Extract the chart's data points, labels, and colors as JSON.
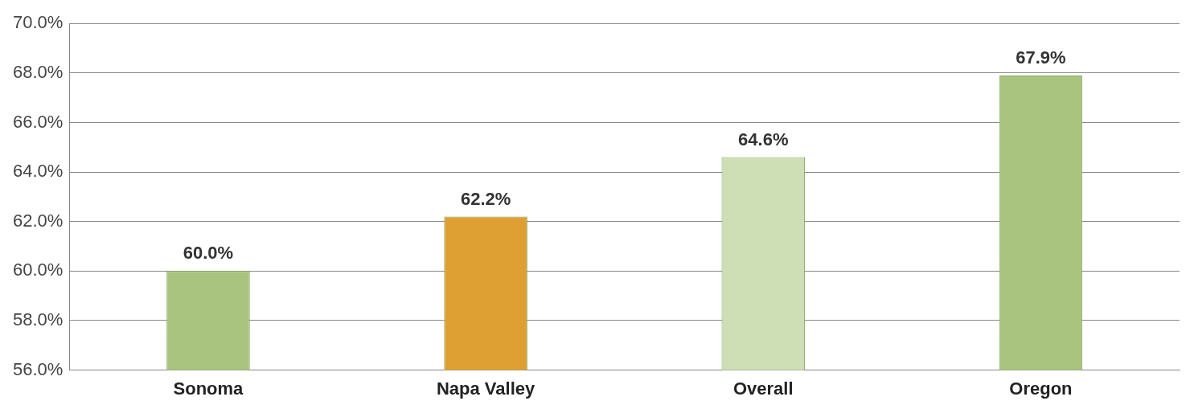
{
  "chart_data": {
    "type": "bar",
    "categories": [
      "Sonoma",
      "Napa Valley",
      "Overall",
      "Oregon"
    ],
    "values": [
      60.0,
      62.2,
      64.6,
      67.9
    ],
    "colors": [
      "#a9c47f",
      "#dfa033",
      "#cfdfb5",
      "#a9c47f"
    ],
    "value_labels": [
      "60.0%",
      "62.2%",
      "64.6%",
      "67.9%"
    ],
    "ylim": [
      56,
      70
    ],
    "yticks": [
      {
        "value": 56,
        "label": "56.0%"
      },
      {
        "value": 58,
        "label": "58.0%"
      },
      {
        "value": 60,
        "label": "60.0%"
      },
      {
        "value": 62,
        "label": "62.0%"
      },
      {
        "value": 64,
        "label": "64.0%"
      },
      {
        "value": 66,
        "label": "66.0%"
      },
      {
        "value": 68,
        "label": "68.0%"
      },
      {
        "value": 70,
        "label": "70.0%"
      }
    ],
    "grid": "y",
    "legend": false
  }
}
